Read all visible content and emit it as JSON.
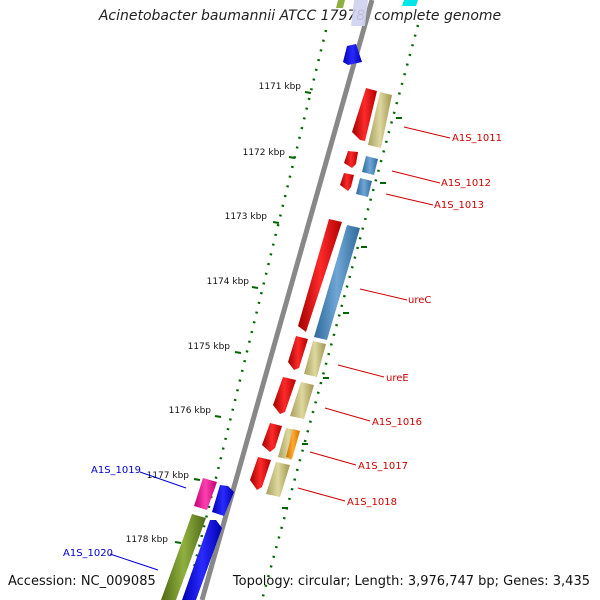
{
  "title": "Acinetobacter baumannii ATCC 17978, complete genome",
  "footer": {
    "accession": "Accession: NC_009085",
    "topology": "Topology: circular; Length: 3,976,747 bp; Genes: 3,435"
  },
  "ticks": [
    {
      "label": "1171 kbp"
    },
    {
      "label": "1172 kbp"
    },
    {
      "label": "1173 kbp"
    },
    {
      "label": "1174 kbp"
    },
    {
      "label": "1175 kbp"
    },
    {
      "label": "1176 kbp"
    },
    {
      "label": "1177 kbp"
    },
    {
      "label": "1178 kbp"
    }
  ],
  "genes": [
    {
      "name": "A1S_1011",
      "color": "#cc0000"
    },
    {
      "name": "A1S_1012",
      "color": "#cc0000"
    },
    {
      "name": "A1S_1013",
      "color": "#cc0000"
    },
    {
      "name": "ureC",
      "color": "#cc0000"
    },
    {
      "name": "ureE",
      "color": "#cc0000"
    },
    {
      "name": "A1S_1016",
      "color": "#cc0000"
    },
    {
      "name": "A1S_1017",
      "color": "#cc0000"
    },
    {
      "name": "A1S_1018",
      "color": "#cc0000"
    },
    {
      "name": "A1S_1019",
      "color": "#0000cc"
    },
    {
      "name": "A1S_1020",
      "color": "#0000cc"
    }
  ],
  "colors": {
    "cds_forward": "#ff0000",
    "cds_reverse": "#0000ff",
    "blast_khaki": "#bdb76b",
    "blast_steel": "#4682b4",
    "blast_olive": "#6b8e23",
    "pink": "#ff1493",
    "orange": "#ff8c00",
    "backbone": "#888888",
    "tick_green": "#006400"
  }
}
